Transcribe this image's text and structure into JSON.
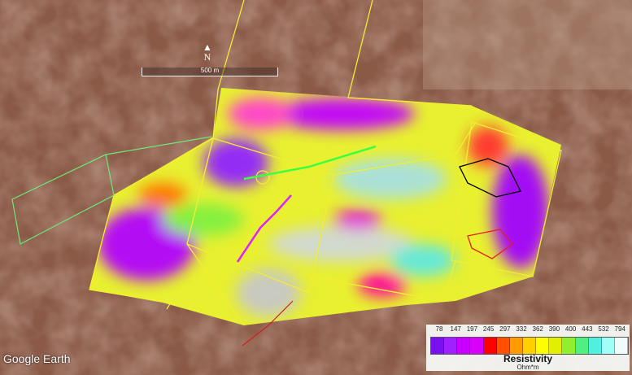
{
  "map": {
    "attribution": "Google Earth",
    "north_label": "N",
    "scale_label": "500 m"
  },
  "legend": {
    "title": "Resistivity",
    "unit": "Ohm*m",
    "ticks": [
      "78",
      "147",
      "197",
      "245",
      "297",
      "332",
      "362",
      "390",
      "400",
      "443",
      "532",
      "794"
    ],
    "colors": [
      "#7a10f0",
      "#a020ff",
      "#c800ff",
      "#d800f8",
      "#ff0000",
      "#ff5000",
      "#ff9a00",
      "#ffd000",
      "#ffff00",
      "#e0f000",
      "#90f030",
      "#50f080",
      "#50f0e0",
      "#a0fff8",
      "#f0fcfc"
    ]
  },
  "overlay_colors": {
    "survey_outline": "#f2ee30",
    "outline_green": "#6ee87a",
    "line_green": "#40ff40",
    "line_magenta": "#e020ff",
    "outline_black": "#000000",
    "outline_red": "#e02020"
  }
}
